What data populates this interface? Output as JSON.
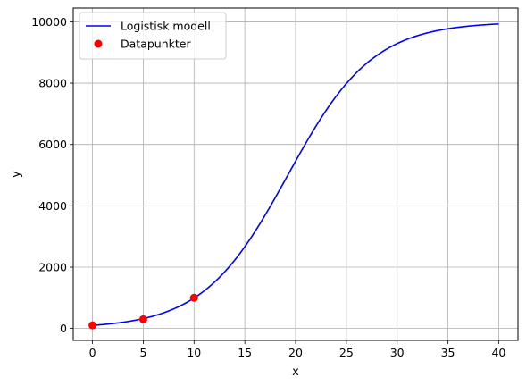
{
  "chart_data": {
    "type": "line",
    "title": "",
    "xlabel": "x",
    "ylabel": "y",
    "xlim": [
      -1.9,
      41.9
    ],
    "ylim": [
      -390,
      10450
    ],
    "xticks": [
      0,
      5,
      10,
      15,
      20,
      25,
      30,
      35,
      40
    ],
    "yticks": [
      0,
      2000,
      4000,
      6000,
      8000,
      10000
    ],
    "grid": true,
    "legend_position": "top-left",
    "model": {
      "kind": "logistic",
      "K": 10000,
      "y0": 100,
      "r": 0.2389,
      "x_range": [
        0,
        40
      ]
    },
    "series": [
      {
        "name": "Logistisk modell",
        "kind": "line",
        "color": "#0000ff",
        "x": [
          0,
          2,
          4,
          6,
          8,
          10,
          12,
          14,
          16,
          18,
          20,
          22,
          24,
          26,
          28,
          30,
          32,
          34,
          36,
          38,
          40
        ],
        "y": [
          100,
          160,
          257,
          411,
          653,
          1027,
          1587,
          2383,
          3435,
          4676,
          5940,
          7052,
          7918,
          8537,
          8990,
          9318,
          9553,
          9703,
          9806,
          9880,
          9923
        ]
      },
      {
        "name": "Datapunkter",
        "kind": "scatter",
        "color": "#ff0000",
        "x": [
          0,
          5,
          10
        ],
        "y": [
          100,
          300,
          1000
        ]
      }
    ]
  }
}
